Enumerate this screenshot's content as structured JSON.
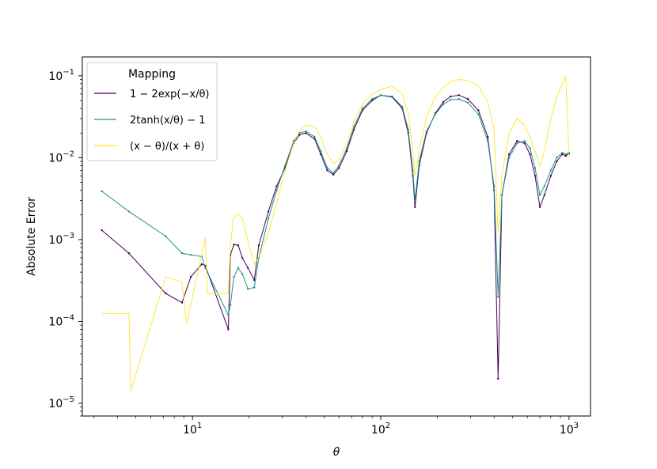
{
  "chart_data": {
    "type": "line",
    "xlabel": "θ",
    "ylabel": "Absolute Error",
    "x_scale": "log",
    "y_scale": "log",
    "xlim": [
      2.6,
      1300
    ],
    "ylim": [
      7e-06,
      0.17
    ],
    "x_tick_values": [
      10,
      100,
      1000
    ],
    "x_tick_labels": [
      {
        "base": "10",
        "exp": "1"
      },
      {
        "base": "10",
        "exp": "2"
      },
      {
        "base": "10",
        "exp": "3"
      }
    ],
    "y_tick_values": [
      1e-05,
      0.0001,
      0.001,
      0.01,
      0.1
    ],
    "y_tick_labels": [
      {
        "base": "10",
        "exp": "−5"
      },
      {
        "base": "10",
        "exp": "−4"
      },
      {
        "base": "10",
        "exp": "−3"
      },
      {
        "base": "10",
        "exp": "−2"
      },
      {
        "base": "10",
        "exp": "−1"
      }
    ],
    "grid": false,
    "legend": {
      "title": "Mapping",
      "placement": "top-left",
      "entries": [
        {
          "label": "1 − 2exp(−x/θ)",
          "color": "#440154"
        },
        {
          "label": "2tanh(x/θ) − 1",
          "color": "#21918c"
        },
        {
          "label": "(x − θ)/(x + θ)",
          "color": "#fde725"
        }
      ]
    },
    "series": [
      {
        "name": "1 − 2exp(−x/θ)",
        "color": "#440154",
        "x": [
          3.3,
          4.6,
          7.2,
          8.8,
          9.8,
          11.2,
          11.7,
          15.5,
          15.9,
          16.6,
          17.5,
          18.4,
          19.7,
          21.3,
          22.5,
          25.3,
          28.0,
          31.0,
          34.5,
          37.0,
          40.0,
          44.5,
          48.0,
          52.0,
          56.0,
          60.0,
          66.0,
          72.0,
          80.0,
          90.0,
          100.0,
          115.0,
          130.0,
          140.0,
          148.0,
          152.0,
          160.0,
          175.0,
          195.0,
          215.0,
          235.0,
          260.0,
          290.0,
          330.0,
          370.0,
          400.0,
          420.0,
          440.0,
          480.0,
          530.0,
          580.0,
          620.0,
          660.0,
          700.0,
          740.0,
          800.0,
          860.0,
          920.0,
          960.0,
          1000.0
        ],
        "y": [
          0.0013,
          0.00068,
          0.00022,
          0.00017,
          0.00035,
          0.0005,
          0.00048,
          8e-05,
          0.00065,
          0.00087,
          0.00085,
          0.0006,
          0.00045,
          0.00032,
          0.00085,
          0.0022,
          0.0045,
          0.0075,
          0.015,
          0.019,
          0.02,
          0.017,
          0.011,
          0.007,
          0.0062,
          0.0075,
          0.012,
          0.022,
          0.038,
          0.05,
          0.058,
          0.055,
          0.04,
          0.02,
          0.006,
          0.0025,
          0.008,
          0.02,
          0.035,
          0.048,
          0.056,
          0.058,
          0.052,
          0.038,
          0.018,
          0.004,
          2e-05,
          0.0035,
          0.011,
          0.016,
          0.015,
          0.011,
          0.006,
          0.0025,
          0.0035,
          0.006,
          0.009,
          0.011,
          0.0105,
          0.0112
        ]
      },
      {
        "name": "2tanh(x/θ) − 1",
        "color": "#21918c",
        "x": [
          3.3,
          4.6,
          7.2,
          8.8,
          9.8,
          11.2,
          11.7,
          15.5,
          15.9,
          16.6,
          17.5,
          18.4,
          19.7,
          21.3,
          22.5,
          25.3,
          28.0,
          31.0,
          34.5,
          37.0,
          40.0,
          44.5,
          48.0,
          52.0,
          56.0,
          60.0,
          66.0,
          72.0,
          80.0,
          90.0,
          100.0,
          115.0,
          130.0,
          140.0,
          148.0,
          152.0,
          160.0,
          175.0,
          195.0,
          215.0,
          235.0,
          260.0,
          290.0,
          330.0,
          370.0,
          400.0,
          420.0,
          440.0,
          480.0,
          530.0,
          580.0,
          620.0,
          660.0,
          700.0,
          740.0,
          800.0,
          860.0,
          920.0,
          960.0,
          1000.0
        ],
        "y": [
          0.0039,
          0.0022,
          0.0011,
          0.00068,
          0.00065,
          0.00062,
          0.00045,
          0.00012,
          0.00016,
          0.00035,
          0.00045,
          0.00038,
          0.00025,
          0.00026,
          0.0006,
          0.0018,
          0.004,
          0.008,
          0.016,
          0.02,
          0.021,
          0.018,
          0.012,
          0.0075,
          0.0065,
          0.008,
          0.013,
          0.024,
          0.04,
          0.052,
          0.058,
          0.056,
          0.042,
          0.022,
          0.007,
          0.003,
          0.009,
          0.021,
          0.034,
          0.045,
          0.051,
          0.052,
          0.047,
          0.034,
          0.016,
          0.0045,
          0.0002,
          0.0035,
          0.01,
          0.015,
          0.016,
          0.013,
          0.0075,
          0.0035,
          0.0045,
          0.007,
          0.01,
          0.0115,
          0.011,
          0.0115
        ]
      },
      {
        "name": "(x − θ)/(x + θ)",
        "color": "#fde725",
        "x": [
          3.3,
          4.6,
          4.7,
          7.2,
          8.8,
          9.3,
          11.2,
          11.7,
          12.0,
          15.5,
          15.9,
          16.5,
          17.5,
          18.4,
          19.7,
          21.3,
          22.5,
          25.3,
          28.0,
          31.0,
          34.5,
          37.0,
          40.0,
          44.5,
          48.0,
          52.0,
          56.0,
          60.0,
          66.0,
          72.0,
          80.0,
          90.0,
          100.0,
          115.0,
          130.0,
          140.0,
          148.0,
          152.0,
          160.0,
          175.0,
          195.0,
          215.0,
          235.0,
          260.0,
          290.0,
          330.0,
          370.0,
          400.0,
          420.0,
          440.0,
          480.0,
          530.0,
          580.0,
          620.0,
          660.0,
          700.0,
          740.0,
          800.0,
          860.0,
          920.0,
          960.0,
          1000.0
        ],
        "y": [
          0.000125,
          0.000125,
          1.4e-05,
          0.00035,
          0.0003,
          9.5e-05,
          0.00065,
          0.00105,
          0.00022,
          0.00022,
          0.0008,
          0.0018,
          0.0021,
          0.0018,
          0.00095,
          0.0005,
          0.0006,
          0.0012,
          0.0028,
          0.007,
          0.015,
          0.021,
          0.025,
          0.024,
          0.018,
          0.011,
          0.0085,
          0.0095,
          0.015,
          0.028,
          0.045,
          0.06,
          0.068,
          0.075,
          0.06,
          0.035,
          0.012,
          0.006,
          0.012,
          0.032,
          0.055,
          0.072,
          0.085,
          0.09,
          0.088,
          0.075,
          0.048,
          0.022,
          0.0012,
          0.006,
          0.02,
          0.03,
          0.025,
          0.018,
          0.012,
          0.008,
          0.012,
          0.03,
          0.055,
          0.08,
          0.1,
          0.01
        ]
      }
    ]
  }
}
